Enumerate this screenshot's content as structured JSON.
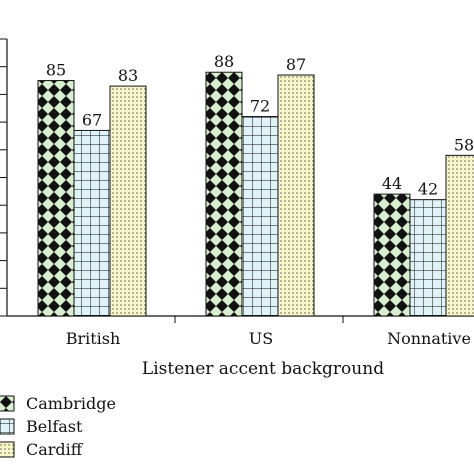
{
  "chart_data": {
    "type": "bar",
    "xlabel": "Listener accent background",
    "ylabel": "",
    "title": "",
    "categories": [
      "British",
      "US",
      "Nonnative"
    ],
    "series": [
      {
        "name": "Cambridge",
        "values": [
          85,
          88,
          44
        ],
        "fill": "#d9f0d0",
        "pattern": "diamond"
      },
      {
        "name": "Belfast",
        "values": [
          67,
          72,
          42
        ],
        "fill": "#dff3f8",
        "pattern": "grid"
      },
      {
        "name": "Cardiff",
        "values": [
          83,
          87,
          58
        ],
        "fill": "#f8f5c8",
        "pattern": "dots"
      }
    ],
    "ylim": [
      0,
      100
    ],
    "grid": false,
    "legend": "bottom-left"
  }
}
